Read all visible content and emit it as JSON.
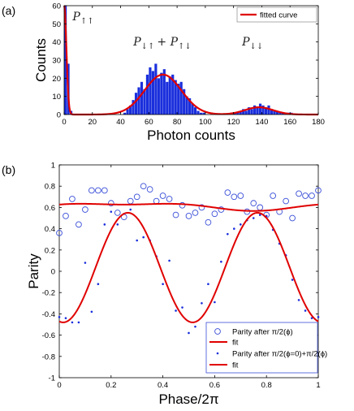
{
  "chart_data": [
    {
      "id": "a",
      "type": "bar",
      "panel_label": "(a)",
      "xlabel": "Photon counts",
      "ylabel": "Counts",
      "xlim": [
        0,
        180
      ],
      "ylim": [
        0,
        60
      ],
      "xticks": [
        0,
        20,
        40,
        60,
        80,
        100,
        120,
        140,
        160,
        180
      ],
      "yticks": [
        0,
        10,
        20,
        30,
        40,
        50,
        60
      ],
      "bar_width": 2,
      "bars": {
        "x": [
          0,
          2,
          4,
          42,
          44,
          46,
          48,
          50,
          52,
          54,
          56,
          58,
          60,
          62,
          64,
          66,
          68,
          70,
          72,
          74,
          76,
          78,
          80,
          82,
          84,
          86,
          88,
          90,
          92,
          94,
          96,
          98,
          120,
          122,
          124,
          126,
          128,
          130,
          132,
          134,
          136,
          138,
          140,
          142,
          144,
          146,
          148,
          150,
          152,
          154,
          156,
          158,
          160
        ],
        "values": [
          60,
          28,
          2,
          1,
          3,
          5,
          8,
          12,
          15,
          18,
          14,
          22,
          26,
          24,
          28,
          20,
          23,
          25,
          18,
          21,
          22,
          19,
          17,
          18,
          14,
          10,
          9,
          6,
          4,
          2,
          1,
          1,
          1,
          1,
          2,
          3,
          2,
          4,
          3,
          5,
          4,
          6,
          5,
          4,
          5,
          3,
          2,
          2,
          1,
          1,
          1,
          1,
          1
        ]
      },
      "series": [
        {
          "name": "fitted curve",
          "color": "#e00000",
          "components": [
            {
              "amplitude": 60,
              "center": 0,
              "sigma": 1.6
            },
            {
              "amplitude": 22,
              "center": 70,
              "sigma": 13
            },
            {
              "amplitude": 4,
              "center": 138,
              "sigma": 10
            }
          ]
        }
      ],
      "legend": {
        "position": "top-right",
        "entries": [
          "fitted curve"
        ]
      },
      "annotations": [
        {
          "main": "P",
          "sub": "↑↑",
          "x": 6,
          "y": 52
        },
        {
          "main": "P",
          "sub": "↓↑",
          "extra": "+ P",
          "sub2": "↑↓",
          "x": 49,
          "y": 38
        },
        {
          "main": "P",
          "sub": "↓↓",
          "x": 126,
          "y": 38
        }
      ],
      "bar_color": "#1a2fdc"
    },
    {
      "id": "b",
      "type": "scatter",
      "panel_label": "(b)",
      "xlabel": "Phase/2π",
      "ylabel": "Parity",
      "xlim": [
        0,
        1
      ],
      "ylim": [
        -1,
        1
      ],
      "xticks": [
        0,
        0.2,
        0.4,
        0.6,
        0.8,
        1
      ],
      "yticks": [
        -1,
        -0.8,
        -0.6,
        -0.4,
        -0.2,
        0,
        0.2,
        0.4,
        0.6,
        0.8,
        1
      ],
      "series": [
        {
          "name": "Parity after π/2(ϕ)",
          "marker": "circle",
          "color": "#3a4fd8",
          "x": [
            0,
            0.025,
            0.05,
            0.075,
            0.1,
            0.125,
            0.15,
            0.175,
            0.2,
            0.225,
            0.25,
            0.275,
            0.3,
            0.325,
            0.35,
            0.375,
            0.4,
            0.425,
            0.45,
            0.475,
            0.5,
            0.525,
            0.55,
            0.575,
            0.6,
            0.625,
            0.65,
            0.675,
            0.7,
            0.725,
            0.75,
            0.775,
            0.8,
            0.825,
            0.85,
            0.875,
            0.9,
            0.925,
            0.95,
            0.975,
            1.0
          ],
          "values": [
            0.36,
            0.52,
            0.68,
            0.44,
            0.58,
            0.76,
            0.76,
            0.76,
            0.64,
            0.55,
            0.51,
            0.66,
            0.7,
            0.8,
            0.77,
            0.66,
            0.71,
            0.68,
            0.53,
            0.62,
            0.52,
            0.55,
            0.6,
            0.46,
            0.54,
            0.58,
            0.74,
            0.7,
            0.71,
            0.56,
            0.64,
            0.6,
            0.53,
            0.71,
            0.56,
            0.66,
            0.5,
            0.73,
            0.71,
            0.71,
            0.76
          ]
        },
        {
          "name": "fit",
          "type": "line",
          "color": "#e00000",
          "function": {
            "offset": 0.612,
            "amp1": 0.03,
            "amp2": 0.015
          }
        },
        {
          "name": "Parity after π/2(ϕ=0)+π/2(ϕ)",
          "marker": "dot",
          "color": "#1a2fdc",
          "x": [
            0,
            0.025,
            0.05,
            0.075,
            0.1,
            0.125,
            0.15,
            0.175,
            0.2,
            0.225,
            0.25,
            0.275,
            0.3,
            0.325,
            0.35,
            0.375,
            0.4,
            0.425,
            0.45,
            0.475,
            0.5,
            0.525,
            0.55,
            0.575,
            0.6,
            0.625,
            0.65,
            0.675,
            0.7,
            0.725,
            0.75,
            0.775,
            0.8,
            0.825,
            0.85,
            0.875,
            0.9,
            0.925,
            0.95,
            0.975,
            1.0
          ],
          "values": [
            -0.43,
            -0.44,
            -0.48,
            -0.48,
            0.08,
            -0.38,
            -0.12,
            0.44,
            0.56,
            0.44,
            0.54,
            0.58,
            0.29,
            0.32,
            0.29,
            0.14,
            -0.12,
            0.1,
            -0.37,
            -0.34,
            -0.58,
            -0.52,
            -0.3,
            -0.12,
            -0.29,
            0.09,
            0.35,
            0.4,
            0.44,
            0.48,
            0.5,
            0.53,
            0.52,
            0.39,
            0.26,
            0.15,
            -0.08,
            -0.27,
            -0.37,
            -0.44,
            -0.43
          ]
        },
        {
          "name": "fit",
          "type": "line",
          "color": "#e00000",
          "function": {
            "offset": 0.035,
            "amp": -0.515,
            "period": 0.5
          }
        }
      ],
      "legend": {
        "position": "bottom-right",
        "entries": [
          "Parity after π/2(ϕ)",
          "fit",
          "Parity after π/2(ϕ=0)+π/2(ϕ)",
          "fit"
        ]
      }
    }
  ]
}
